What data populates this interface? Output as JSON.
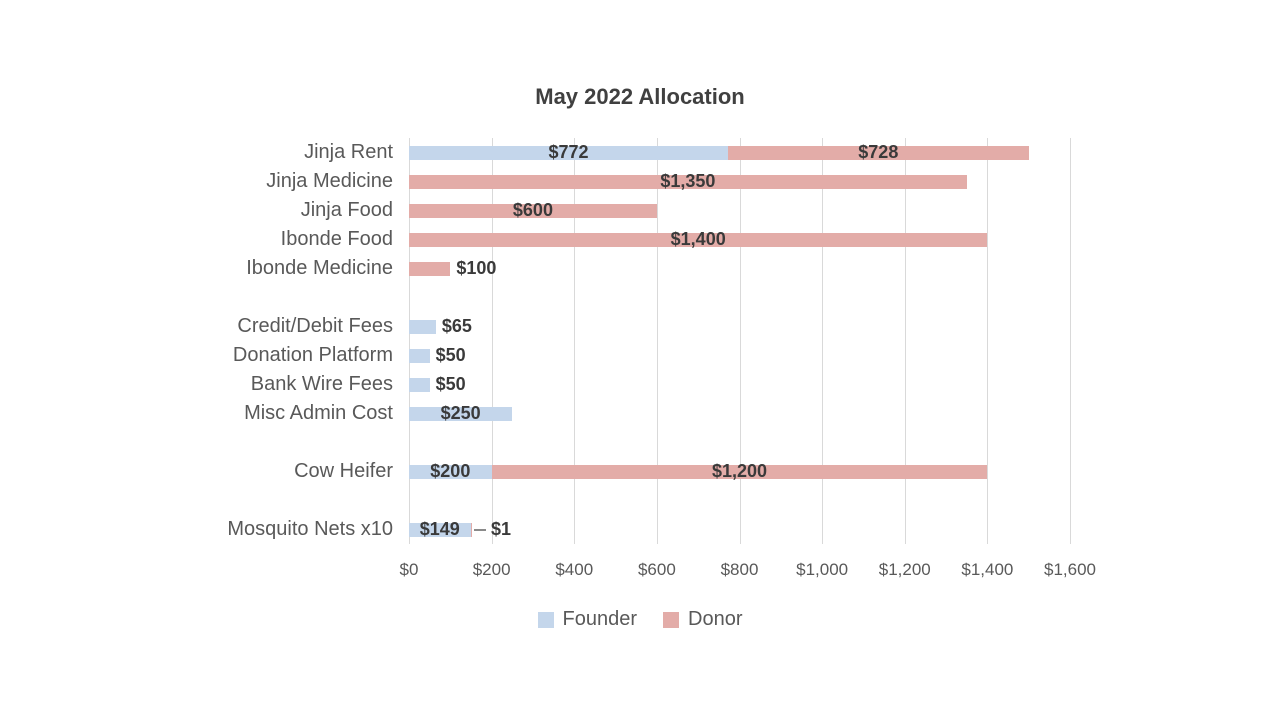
{
  "title": "May 2022 Allocation",
  "colors": {
    "founder": "#c4d6eb",
    "donor": "#e3aca8",
    "gridline": "#d9d9d9",
    "axis_text": "#595959",
    "value_text": "#3a3a3a",
    "title_text": "#404040"
  },
  "chart_data": {
    "type": "bar",
    "orientation": "horizontal",
    "stacked": true,
    "title": "May 2022 Allocation",
    "categories": [
      "Jinja Rent",
      "Jinja Medicine",
      "Jinja Food",
      "Ibonde Food",
      "Ibonde Medicine",
      "",
      "Credit/Debit Fees",
      "Donation Platform",
      "Bank Wire Fees",
      "Misc Admin Cost",
      "",
      "Cow Heifer",
      "",
      "Mosquito Nets x10"
    ],
    "series": [
      {
        "name": "Founder",
        "color_key": "founder",
        "values": [
          772,
          0,
          0,
          0,
          0,
          null,
          65,
          50,
          50,
          250,
          null,
          200,
          null,
          149
        ],
        "labels": [
          "$772",
          "",
          "",
          "",
          "",
          "",
          "$65",
          "$50",
          "$50",
          "$250",
          "",
          "$200",
          "",
          "$149"
        ]
      },
      {
        "name": "Donor",
        "color_key": "donor",
        "values": [
          728,
          1350,
          600,
          1400,
          100,
          null,
          0,
          0,
          0,
          0,
          null,
          1200,
          null,
          1
        ],
        "labels": [
          "$728",
          "$1,350",
          "$600",
          "$1,400",
          "$100",
          "",
          "",
          "",
          "",
          "",
          "",
          "$1,200",
          "",
          "$1"
        ]
      }
    ],
    "xlim": [
      0,
      1600
    ],
    "x_ticks": [
      "$0",
      "$200",
      "$400",
      "$600",
      "$800",
      "$1,000",
      "$1,200",
      "$1,400",
      "$1,600"
    ],
    "grid": true,
    "data_labels": true,
    "legend_position": "bottom",
    "legend": [
      "Founder",
      "Donor"
    ]
  }
}
